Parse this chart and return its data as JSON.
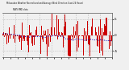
{
  "title_line1": "Milwaukee Weather Normalized and Average Wind Direction (Last 24 Hours)",
  "title_line2": "NWS MKE data",
  "background_color": "#f0f0f0",
  "plot_bg_color": "#f0f0f0",
  "grid_color": "#aaaaaa",
  "bar_color": "#cc0000",
  "line_color": "#0000bb",
  "n_points": 144,
  "y_min": -7,
  "y_max": 7,
  "yticks": [
    5,
    0,
    -5
  ],
  "ytick_labels": [
    "5",
    "0",
    "-5"
  ],
  "seed": 77
}
